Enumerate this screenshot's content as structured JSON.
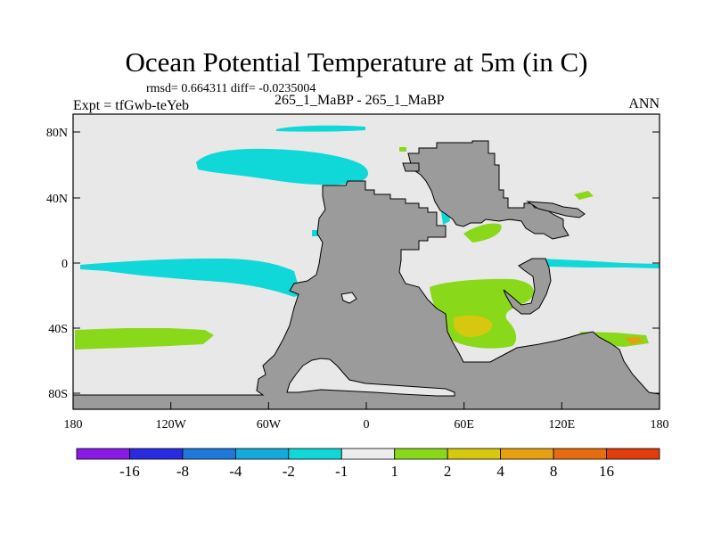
{
  "title": "Ocean Potential Temperature at 5m (in C)",
  "stats": "rmsd= 0.664311 diff= -0.0235004",
  "experiment": "Expt = tfGwb-teYeb",
  "comparison": "265_1_MaBP - 265_1_MaBP",
  "season": "ANN",
  "lat_labels": [
    "80N",
    "40N",
    "0",
    "40S",
    "80S"
  ],
  "lon_labels": [
    "180",
    "120W",
    "60W",
    "0",
    "60E",
    "120E",
    "180"
  ],
  "colorbar": {
    "colors": [
      "#8a1ae6",
      "#2a2ae0",
      "#1f78dc",
      "#14aade",
      "#10d8d8",
      "#ececec",
      "#8ad81a",
      "#d6c80e",
      "#e6a010",
      "#e66c0e",
      "#e03c0c"
    ],
    "labels": [
      "-16",
      "-8",
      "-4",
      "-2",
      "-1",
      "1",
      "2",
      "4",
      "8",
      "16"
    ]
  },
  "colors": {
    "ocean": "#e8e8e8",
    "land": "#9b9b9b",
    "cyan_anomaly": "#10d8d8",
    "green_anomaly": "#8ad81a",
    "yellow_anomaly": "#d6c80e",
    "orange_anomaly": "#e6a010"
  }
}
